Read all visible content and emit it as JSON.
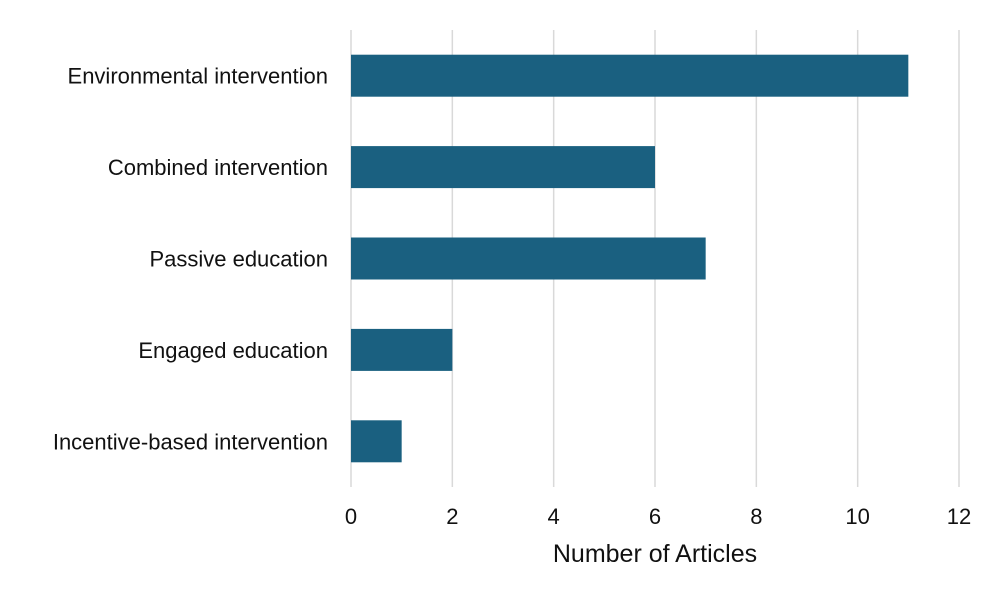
{
  "chart_data": {
    "type": "bar",
    "orientation": "horizontal",
    "categories": [
      "Environmental intervention",
      "Combined intervention",
      "Passive education",
      "Engaged education",
      "Incentive-based intervention"
    ],
    "values": [
      11,
      6,
      7,
      2,
      1
    ],
    "xlabel": "Number of Articles",
    "ylabel": "",
    "title": "",
    "xlim": [
      0,
      12
    ],
    "xticks": [
      "0",
      "2",
      "4",
      "6",
      "8",
      "10",
      "12"
    ],
    "grid": "vertical",
    "legend": "none",
    "bar_color": "#1a6080"
  }
}
